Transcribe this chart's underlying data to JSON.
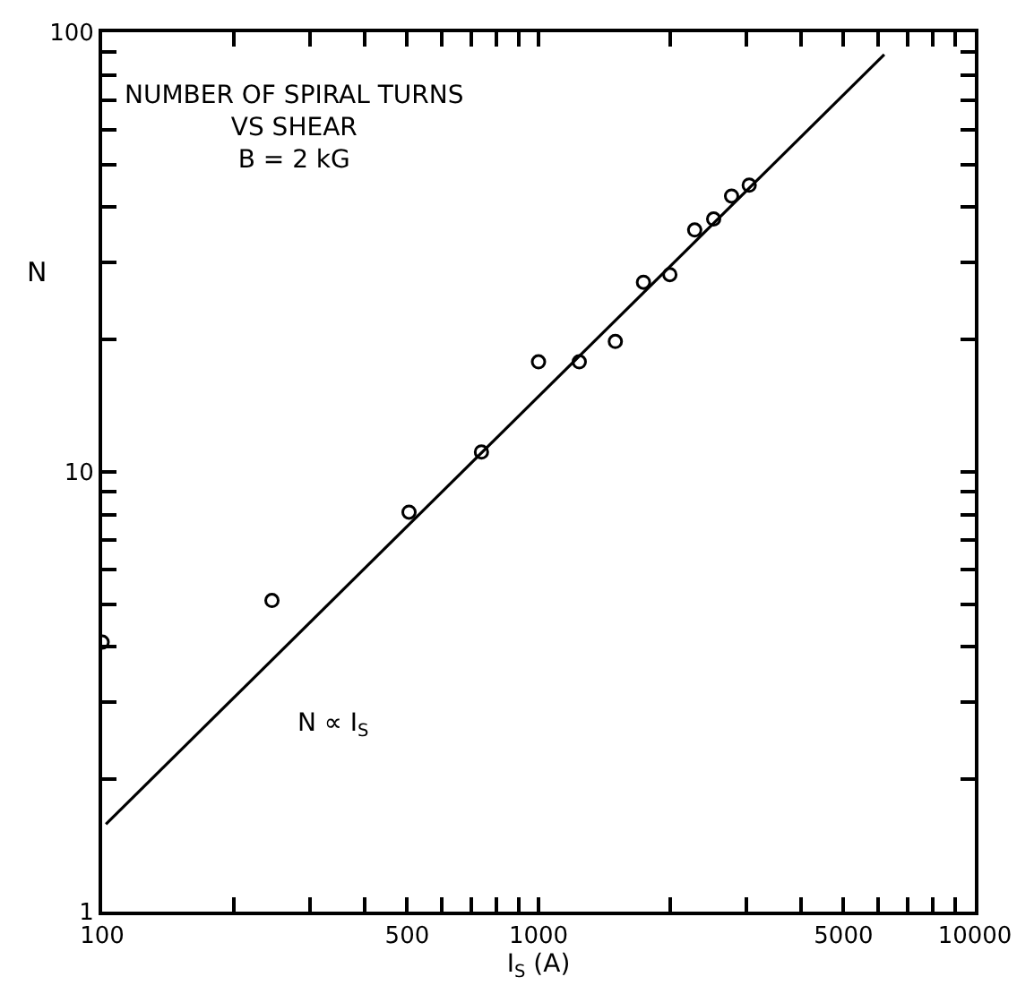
{
  "chart_data": {
    "type": "scatter",
    "title": "NUMBER OF SPIRAL TURNS\nVS SHEAR\nB = 2 kG",
    "xlabel": "I$_{S}$ (A)",
    "ylabel": "N",
    "log": "xy",
    "xlim": [
      100,
      10000
    ],
    "xticks": [
      100,
      {
        "value": 200,
        "label": null
      },
      {
        "value": 300,
        "label": null
      },
      {
        "value": 400,
        "label": null
      },
      500,
      {
        "value": 600,
        "label": null
      },
      {
        "value": 700,
        "label": null
      },
      {
        "value": 800,
        "label": null
      },
      {
        "value": 900,
        "label": null
      },
      1000,
      {
        "value": 2000,
        "label": null
      },
      {
        "value": 3000,
        "label": null
      },
      {
        "value": 4000,
        "label": null
      },
      5000,
      {
        "value": 6000,
        "label": null
      },
      {
        "value": 7000,
        "label": null
      },
      {
        "value": 8000,
        "label": null
      },
      {
        "value": 9000,
        "label": null
      },
      10000
    ],
    "ylim": [
      1,
      100
    ],
    "yticks": [
      1,
      {
        "value": 2,
        "label": null
      },
      {
        "value": 3,
        "label": null
      },
      {
        "value": 4,
        "label": null
      },
      {
        "value": 5,
        "label": null
      },
      {
        "value": 6,
        "label": null
      },
      {
        "value": 7,
        "label": null
      },
      {
        "value": 8,
        "label": null
      },
      {
        "value": 9,
        "label": null
      },
      10,
      {
        "value": 20,
        "label": null
      },
      {
        "value": 30,
        "label": null
      },
      {
        "value": 40,
        "label": null
      },
      {
        "value": 50,
        "label": null
      },
      {
        "value": 60,
        "label": null
      },
      {
        "value": 70,
        "label": null
      },
      {
        "value": 80,
        "label": null
      },
      {
        "value": 90,
        "label": null
      },
      100
    ],
    "series": [
      {
        "marker": "circle",
        "color": "#000000",
        "x": [
          100,
          245,
          505,
          740,
          1000,
          1240,
          1500,
          1740,
          2000,
          2280,
          2520,
          2770,
          3040
        ],
        "values": [
          4.1,
          5.1,
          8.1,
          11.1,
          17.8,
          17.8,
          19.8,
          27,
          28.1,
          35.5,
          37.6,
          42.4,
          44.9
        ]
      },
      {
        "type": "line",
        "marker": "none",
        "line_style": "solid",
        "color": "#000000",
        "x": [
          102,
          6200
        ],
        "values": [
          1.58,
          89
        ]
      }
    ],
    "annotations": [
      "N ∝ I$_{S}$"
    ]
  }
}
